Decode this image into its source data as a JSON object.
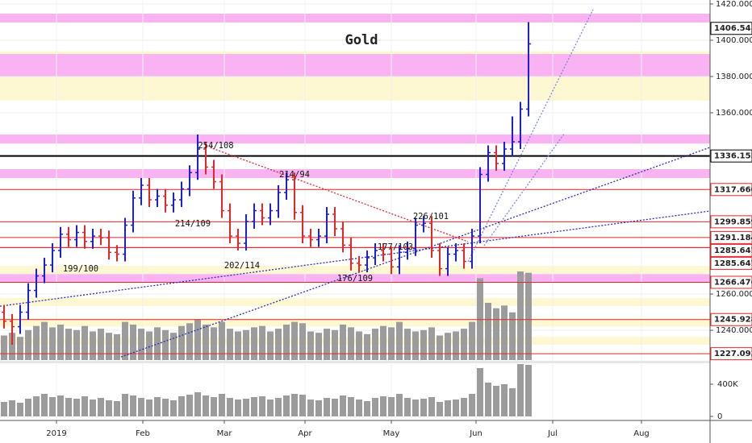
{
  "chart_data": {
    "type": "ohlc",
    "title": "Gold",
    "x": [
      1,
      3,
      5,
      7,
      9,
      11,
      13,
      15,
      17,
      19,
      21,
      23,
      25,
      27,
      29,
      31,
      33,
      35,
      37,
      39,
      41,
      43,
      45,
      47,
      49,
      51,
      53,
      55,
      57,
      59,
      61,
      63,
      65,
      67,
      69,
      71,
      73,
      75,
      77,
      79,
      81,
      83,
      85,
      87,
      89,
      91,
      93,
      95,
      97,
      99,
      101,
      103,
      105,
      107,
      109,
      111,
      113,
      115,
      117,
      119,
      121,
      123,
      125,
      127,
      129,
      131
    ],
    "open": [
      1250,
      1245,
      1242,
      1250,
      1262,
      1270,
      1276,
      1284,
      1293,
      1290,
      1294,
      1289,
      1292,
      1291,
      1283,
      1282,
      1298,
      1313,
      1320,
      1312,
      1314,
      1309,
      1312,
      1318,
      1327,
      1340,
      1330,
      1322,
      1306,
      1292,
      1288,
      1300,
      1306,
      1302,
      1306,
      1316,
      1323,
      1305,
      1292,
      1290,
      1292,
      1304,
      1296,
      1287,
      1277,
      1276,
      1280,
      1284,
      1282,
      1275,
      1283,
      1285,
      1298,
      1299,
      1284,
      1274,
      1282,
      1284,
      1278,
      1292,
      1326,
      1338,
      1332,
      1340,
      1344,
      1362
    ],
    "high": [
      1254,
      1249,
      1254,
      1266,
      1274,
      1280,
      1288,
      1297,
      1297,
      1298,
      1298,
      1296,
      1296,
      1295,
      1287,
      1302,
      1317,
      1324,
      1324,
      1318,
      1318,
      1316,
      1322,
      1331,
      1348,
      1344,
      1334,
      1326,
      1310,
      1296,
      1304,
      1310,
      1310,
      1310,
      1320,
      1327,
      1327,
      1309,
      1296,
      1296,
      1308,
      1308,
      1300,
      1291,
      1281,
      1284,
      1288,
      1288,
      1286,
      1287,
      1289,
      1302,
      1303,
      1303,
      1288,
      1286,
      1288,
      1288,
      1296,
      1330,
      1342,
      1342,
      1344,
      1358,
      1366,
      1410
    ],
    "low": [
      1241,
      1232,
      1238,
      1246,
      1258,
      1266,
      1272,
      1280,
      1286,
      1286,
      1285,
      1285,
      1287,
      1279,
      1278,
      1278,
      1294,
      1309,
      1308,
      1308,
      1305,
      1305,
      1308,
      1314,
      1323,
      1326,
      1318,
      1302,
      1288,
      1284,
      1284,
      1296,
      1298,
      1298,
      1302,
      1312,
      1301,
      1288,
      1286,
      1286,
      1288,
      1292,
      1283,
      1273,
      1272,
      1272,
      1276,
      1278,
      1271,
      1271,
      1279,
      1281,
      1294,
      1280,
      1270,
      1270,
      1278,
      1274,
      1274,
      1288,
      1322,
      1328,
      1328,
      1336,
      1340,
      1358
    ],
    "close": [
      1245,
      1242,
      1250,
      1262,
      1270,
      1276,
      1284,
      1293,
      1290,
      1294,
      1289,
      1292,
      1291,
      1283,
      1282,
      1298,
      1313,
      1320,
      1312,
      1314,
      1309,
      1312,
      1318,
      1327,
      1340,
      1330,
      1322,
      1306,
      1292,
      1288,
      1300,
      1306,
      1302,
      1306,
      1316,
      1323,
      1305,
      1292,
      1290,
      1292,
      1304,
      1296,
      1287,
      1277,
      1276,
      1280,
      1284,
      1282,
      1275,
      1283,
      1285,
      1298,
      1299,
      1284,
      1274,
      1282,
      1284,
      1278,
      1292,
      1326,
      1338,
      1332,
      1340,
      1344,
      1362,
      1398
    ],
    "up_color": "#1c1fd4",
    "down_color": "#e3262b",
    "xlim": [
      0,
      176
    ],
    "xticks": [
      {
        "value": 14,
        "label": "2019"
      },
      {
        "value": 35.4,
        "label": "Feb"
      },
      {
        "value": 55.6,
        "label": "Mar"
      },
      {
        "value": 75.6,
        "label": "Apr"
      },
      {
        "value": 97,
        "label": "May"
      },
      {
        "value": 118,
        "label": "Jun"
      },
      {
        "value": 137,
        "label": "Jul"
      },
      {
        "value": 159,
        "label": "Aug"
      }
    ],
    "ylim": [
      1223.6,
      1422.2
    ],
    "yticks": [
      {
        "value": 1240,
        "label": "1240.000"
      },
      {
        "value": 1260,
        "label": "1260.000"
      },
      {
        "value": 1360,
        "label": "1360.000"
      },
      {
        "value": 1380,
        "label": "1380.000"
      },
      {
        "value": 1400,
        "label": "1400.000"
      },
      {
        "value": 1420,
        "label": "1420.000"
      }
    ],
    "grid": true,
    "zones": [
      {
        "low": 1366.7,
        "high": 1394,
        "color": "#fdf8d2"
      },
      {
        "low": 1253.3,
        "high": 1257.8,
        "color": "#fdf8d2"
      },
      {
        "low": 1242,
        "high": 1246.7,
        "color": "#fdf8d2"
      },
      {
        "low": 1232,
        "high": 1236.4,
        "color": "#fdf8d2"
      },
      {
        "low": 1271,
        "high": 1275.6,
        "color": "#fdf8d2"
      },
      {
        "low": 1409.8,
        "high": 1414.7,
        "color": "#f9b3f2"
      },
      {
        "low": 1380,
        "high": 1392.4,
        "color": "#f9b3f2"
      },
      {
        "low": 1343,
        "high": 1348,
        "color": "#f9b3f2"
      },
      {
        "low": 1324,
        "high": 1328.9,
        "color": "#f9b3f2"
      },
      {
        "low": 1266.7,
        "high": 1271,
        "color": "#f9b3f2"
      }
    ],
    "levels": [
      {
        "value": 1406.545,
        "label": "1406.545",
        "color": "#000000"
      },
      {
        "value": 1336.152,
        "label": "1336.152",
        "color": "#000000"
      },
      {
        "value": 1317.66,
        "label": "1317.660",
        "color": "#e3262b"
      },
      {
        "value": 1299.859,
        "label": "1299.859",
        "color": "#e3262b"
      },
      {
        "value": 1291.184,
        "label": "1291.184",
        "color": "#e3262b"
      },
      {
        "value": 1285.647,
        "label": "1285.647",
        "color": "#e3262b"
      },
      {
        "value": 1285.647,
        "label": "1285.647",
        "color": "#e3262b"
      },
      {
        "value": 1266.476,
        "label": "1266.476",
        "color": "#e3262b"
      },
      {
        "value": 1245.928,
        "label": "1245.928",
        "color": "#e3262b"
      },
      {
        "value": 1227.093,
        "label": "1227.093",
        "color": "#e3262b"
      }
    ],
    "trendlines": [
      {
        "x1": 0,
        "y1": 1253.3,
        "x2": 176,
        "y2": 1305.8,
        "color": "#2b2bc0"
      },
      {
        "x1": 30,
        "y1": 1225.3,
        "x2": 176,
        "y2": 1340.9,
        "color": "#2b2bc0"
      },
      {
        "x1": 52,
        "y1": 1340.9,
        "x2": 116,
        "y2": 1288.9,
        "color": "#e3262b"
      },
      {
        "x1": 116,
        "y1": 1277.8,
        "x2": 147,
        "y2": 1416.9,
        "color": "#7c86e0"
      },
      {
        "x1": 120,
        "y1": 1286.7,
        "x2": 140,
        "y2": 1348.9,
        "color": "#7c86e0"
      }
    ],
    "annotations": [
      {
        "text": "254/108",
        "x": 53.5,
        "y": 1341.8
      },
      {
        "text": "214/109",
        "x": 47.8,
        "y": 1298.7
      },
      {
        "text": "199/100",
        "x": 20,
        "y": 1273.8
      },
      {
        "text": "202/114",
        "x": 60,
        "y": 1275.6
      },
      {
        "text": "214/94",
        "x": 73,
        "y": 1325.8
      },
      {
        "text": "176/109",
        "x": 88,
        "y": 1268.4
      },
      {
        "text": "177/103",
        "x": 98,
        "y": 1285.8
      },
      {
        "text": "226/101",
        "x": 106.8,
        "y": 1302.7
      }
    ],
    "volume": {
      "values": [
        180000,
        200000,
        170000,
        220000,
        250000,
        280000,
        240000,
        260000,
        230000,
        220000,
        250000,
        210000,
        230000,
        200000,
        190000,
        280000,
        260000,
        230000,
        210000,
        240000,
        220000,
        200000,
        250000,
        270000,
        300000,
        260000,
        240000,
        280000,
        230000,
        210000,
        220000,
        240000,
        250000,
        210000,
        230000,
        260000,
        280000,
        270000,
        210000,
        200000,
        230000,
        220000,
        260000,
        240000,
        210000,
        190000,
        230000,
        250000,
        240000,
        280000,
        230000,
        210000,
        220000,
        240000,
        180000,
        200000,
        210000,
        230000,
        280000,
        600000,
        420000,
        380000,
        400000,
        350000,
        650000,
        640000
      ],
      "color": "#9c9c9c",
      "ylim": [
        -50000,
        650000
      ],
      "yticks": [
        0,
        {
          "value": 400000,
          "label": "400K"
        }
      ]
    }
  }
}
